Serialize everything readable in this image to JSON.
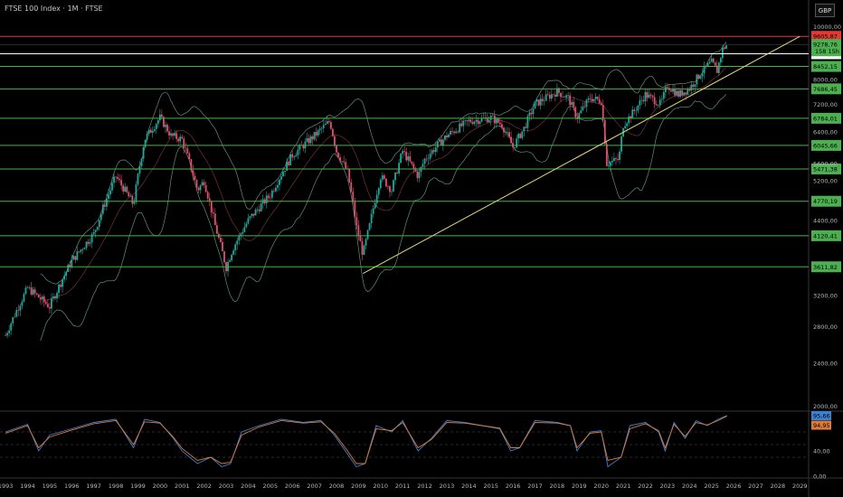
{
  "header": {
    "title": "FTSE 100 Index · 1M · FTSE",
    "currency": "GBP"
  },
  "colors": {
    "up": "#26a69a",
    "down": "#e0506b",
    "level": "#4caf50",
    "trend": "#e6d77a",
    "resistance": "#e53935",
    "bb": "#5f8f7f",
    "rsi": "#3b82d6",
    "rsi_sig": "#e07a3a"
  },
  "chart_data": [
    {
      "type": "line",
      "title": "FTSE 100 Index · 1M · FTSE",
      "x_ticks": [
        "1993",
        "1994",
        "1995",
        "1996",
        "1997",
        "1998",
        "1999",
        "2000",
        "2001",
        "2002",
        "2003",
        "2004",
        "2005",
        "2006",
        "2007",
        "2008",
        "2009",
        "2010",
        "2011",
        "2012",
        "2013",
        "2014",
        "2015",
        "2016",
        "2017",
        "2018",
        "2019",
        "2020",
        "2021",
        "2022",
        "2023",
        "2024",
        "2025",
        "2026",
        "2027",
        "2028",
        "2029"
      ],
      "y_ticks": [
        "10000,00",
        "8000,00",
        "7200,00",
        "6400,00",
        "5600,00",
        "5200,00",
        "4400,00",
        "3200,00",
        "2800,00",
        "2400,00",
        "2000,00"
      ],
      "y_scale": "log",
      "ylim": [
        1980,
        10300
      ],
      "levels": [
        {
          "label": "9605,87",
          "value": 9605.87,
          "color": "#e53935"
        },
        {
          "label": "8921,23",
          "value": 8921.23,
          "color": "#ffffff"
        },
        {
          "label": "8452,15",
          "value": 8452.15,
          "color": "#4caf50"
        },
        {
          "label": "7686,45",
          "value": 7686.45,
          "color": "#4caf50"
        },
        {
          "label": "6784,01",
          "value": 6784.01,
          "color": "#4caf50"
        },
        {
          "label": "6045,66",
          "value": 6045.66,
          "color": "#4caf50"
        },
        {
          "label": "5471,38",
          "value": 5471.38,
          "color": "#4caf50"
        },
        {
          "label": "4770,19",
          "value": 4770.19,
          "color": "#4caf50"
        },
        {
          "label": "4120,41",
          "value": 4120.41,
          "color": "#4caf50"
        },
        {
          "label": "3611,82",
          "value": 3611.82,
          "color": "#4caf50"
        }
      ],
      "last_price": {
        "label": "9278,76",
        "sub": "158 15h",
        "value": 9278.76
      },
      "trendline": [
        {
          "x": 2009.2,
          "y": 3510
        },
        {
          "x": 2029.0,
          "y": 9600
        }
      ],
      "series": [
        {
          "values": [
            [
              1993.0,
              2700
            ],
            [
              1994.0,
              3300
            ],
            [
              1995.0,
              3050
            ],
            [
              1996.0,
              3700
            ],
            [
              1997.0,
              4150
            ],
            [
              1998.0,
              5300
            ],
            [
              1998.8,
              4700
            ],
            [
              1999.3,
              6200
            ],
            [
              2000.0,
              6800
            ],
            [
              2000.5,
              6300
            ],
            [
              2001.0,
              6200
            ],
            [
              2001.7,
              5000
            ],
            [
              2002.0,
              5200
            ],
            [
              2002.5,
              4300
            ],
            [
              2003.0,
              3600
            ],
            [
              2003.3,
              3900
            ],
            [
              2004.0,
              4400
            ],
            [
              2005.0,
              4900
            ],
            [
              2006.0,
              5800
            ],
            [
              2007.0,
              6300
            ],
            [
              2007.7,
              6700
            ],
            [
              2008.0,
              5900
            ],
            [
              2008.5,
              5400
            ],
            [
              2008.9,
              4300
            ],
            [
              2009.2,
              3800
            ],
            [
              2009.5,
              4300
            ],
            [
              2010.0,
              5300
            ],
            [
              2010.5,
              5000
            ],
            [
              2011.0,
              5900
            ],
            [
              2011.7,
              5300
            ],
            [
              2012.0,
              5700
            ],
            [
              2013.0,
              6300
            ],
            [
              2014.0,
              6700
            ],
            [
              2015.0,
              6800
            ],
            [
              2015.5,
              6600
            ],
            [
              2016.0,
              6000
            ],
            [
              2016.5,
              6500
            ],
            [
              2017.0,
              7200
            ],
            [
              2018.0,
              7600
            ],
            [
              2018.5,
              7400
            ],
            [
              2018.9,
              6800
            ],
            [
              2019.5,
              7400
            ],
            [
              2020.0,
              7300
            ],
            [
              2020.25,
              5600
            ],
            [
              2020.8,
              5700
            ],
            [
              2021.0,
              6600
            ],
            [
              2021.5,
              7000
            ],
            [
              2022.0,
              7500
            ],
            [
              2022.7,
              7200
            ],
            [
              2023.0,
              7800
            ],
            [
              2023.5,
              7500
            ],
            [
              2024.0,
              7700
            ],
            [
              2024.5,
              8200
            ],
            [
              2025.0,
              8600
            ],
            [
              2025.25,
              8300
            ],
            [
              2025.5,
              9100
            ],
            [
              2025.7,
              9279
            ]
          ]
        }
      ]
    },
    {
      "type": "line",
      "title": "",
      "y_ticks": [
        "40,00",
        "0,00"
      ],
      "ylim": [
        0,
        100
      ],
      "readouts": [
        {
          "label": "95,66",
          "value": 95.66
        },
        {
          "label": "94,95",
          "value": 94.95
        }
      ],
      "series": [
        {
          "values": [
            [
              1993,
              70
            ],
            [
              1994,
              82
            ],
            [
              1994.5,
              40
            ],
            [
              1995,
              65
            ],
            [
              1996,
              75
            ],
            [
              1997,
              85
            ],
            [
              1998,
              90
            ],
            [
              1998.8,
              45
            ],
            [
              1999.3,
              90
            ],
            [
              2000,
              85
            ],
            [
              2000.6,
              60
            ],
            [
              2001,
              40
            ],
            [
              2001.7,
              20
            ],
            [
              2002.3,
              30
            ],
            [
              2002.8,
              15
            ],
            [
              2003.2,
              20
            ],
            [
              2003.7,
              70
            ],
            [
              2004.5,
              80
            ],
            [
              2005.5,
              90
            ],
            [
              2006.5,
              85
            ],
            [
              2007.3,
              88
            ],
            [
              2007.9,
              65
            ],
            [
              2008.5,
              35
            ],
            [
              2008.9,
              15
            ],
            [
              2009.3,
              20
            ],
            [
              2009.8,
              80
            ],
            [
              2010.5,
              70
            ],
            [
              2011,
              88
            ],
            [
              2011.7,
              40
            ],
            [
              2012.3,
              60
            ],
            [
              2013,
              88
            ],
            [
              2013.8,
              85
            ],
            [
              2014.6,
              80
            ],
            [
              2015.4,
              75
            ],
            [
              2015.9,
              40
            ],
            [
              2016.3,
              45
            ],
            [
              2017,
              88
            ],
            [
              2018,
              85
            ],
            [
              2018.6,
              80
            ],
            [
              2018.9,
              40
            ],
            [
              2019.5,
              70
            ],
            [
              2020,
              72
            ],
            [
              2020.3,
              15
            ],
            [
              2020.9,
              30
            ],
            [
              2021.3,
              80
            ],
            [
              2022,
              85
            ],
            [
              2022.6,
              70
            ],
            [
              2022.9,
              40
            ],
            [
              2023.3,
              85
            ],
            [
              2023.8,
              60
            ],
            [
              2024.3,
              88
            ],
            [
              2024.8,
              80
            ],
            [
              2025.3,
              90
            ],
            [
              2025.7,
              96
            ]
          ]
        },
        {
          "values": [
            [
              1993,
              68
            ],
            [
              1994,
              80
            ],
            [
              1994.5,
              45
            ],
            [
              1995,
              62
            ],
            [
              1996,
              73
            ],
            [
              1997,
              83
            ],
            [
              1998,
              88
            ],
            [
              1998.8,
              50
            ],
            [
              1999.3,
              86
            ],
            [
              2000,
              84
            ],
            [
              2000.6,
              62
            ],
            [
              2001,
              44
            ],
            [
              2001.7,
              25
            ],
            [
              2002.3,
              30
            ],
            [
              2002.8,
              20
            ],
            [
              2003.2,
              22
            ],
            [
              2003.7,
              65
            ],
            [
              2004.5,
              78
            ],
            [
              2005.5,
              88
            ],
            [
              2006.5,
              84
            ],
            [
              2007.3,
              86
            ],
            [
              2007.9,
              68
            ],
            [
              2008.5,
              40
            ],
            [
              2008.9,
              20
            ],
            [
              2009.3,
              20
            ],
            [
              2009.8,
              75
            ],
            [
              2010.5,
              72
            ],
            [
              2011,
              85
            ],
            [
              2011.7,
              45
            ],
            [
              2012.3,
              58
            ],
            [
              2013,
              85
            ],
            [
              2013.8,
              84
            ],
            [
              2014.6,
              80
            ],
            [
              2015.4,
              76
            ],
            [
              2015.9,
              45
            ],
            [
              2016.3,
              45
            ],
            [
              2017,
              85
            ],
            [
              2018,
              84
            ],
            [
              2018.6,
              80
            ],
            [
              2018.9,
              45
            ],
            [
              2019.5,
              68
            ],
            [
              2020,
              70
            ],
            [
              2020.3,
              25
            ],
            [
              2020.9,
              30
            ],
            [
              2021.3,
              75
            ],
            [
              2022,
              83
            ],
            [
              2022.6,
              72
            ],
            [
              2022.9,
              45
            ],
            [
              2023.3,
              82
            ],
            [
              2023.8,
              63
            ],
            [
              2024.3,
              85
            ],
            [
              2024.8,
              81
            ],
            [
              2025.3,
              88
            ],
            [
              2025.7,
              95
            ]
          ]
        }
      ]
    }
  ]
}
